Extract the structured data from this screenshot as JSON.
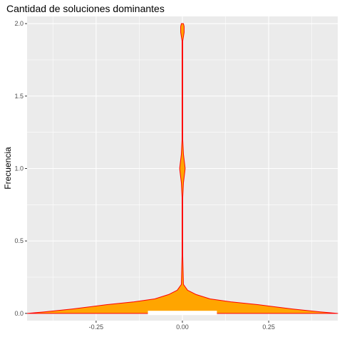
{
  "chart_data": {
    "type": "violin",
    "title": "Cantidad de soluciones dominantes",
    "xlabel": "",
    "ylabel": "Frecuencia",
    "xlim": [
      -0.45,
      0.45
    ],
    "ylim": [
      -0.05,
      2.05
    ],
    "x_ticks": [
      {
        "value": -0.25,
        "label": "-0.25"
      },
      {
        "value": 0.0,
        "label": "0.00"
      },
      {
        "value": 0.25,
        "label": "0.25"
      }
    ],
    "y_ticks": [
      {
        "value": 0.0,
        "label": "0.0"
      },
      {
        "value": 0.5,
        "label": "0.5"
      },
      {
        "value": 1.0,
        "label": "1.0"
      },
      {
        "value": 1.5,
        "label": "1.5"
      },
      {
        "value": 2.0,
        "label": "2.0"
      }
    ],
    "grid": true,
    "legend": "none",
    "fill_color": "#FFA500",
    "outline_color": "#FF0000",
    "panel_color": "#EBEBEB",
    "grid_color": "#FFFFFF",
    "violin": {
      "center_x": 0.0,
      "y_min": 0.0,
      "y_max": 2.0,
      "profile": [
        {
          "y": 0.0,
          "half_width": 0.45
        },
        {
          "y": 0.01,
          "half_width": 0.4
        },
        {
          "y": 0.03,
          "half_width": 0.32
        },
        {
          "y": 0.06,
          "half_width": 0.22
        },
        {
          "y": 0.08,
          "half_width": 0.14
        },
        {
          "y": 0.1,
          "half_width": 0.08
        },
        {
          "y": 0.13,
          "half_width": 0.04
        },
        {
          "y": 0.16,
          "half_width": 0.015
        },
        {
          "y": 0.2,
          "half_width": 0.003
        },
        {
          "y": 0.4,
          "half_width": 0.001
        },
        {
          "y": 0.8,
          "half_width": 0.001
        },
        {
          "y": 0.9,
          "half_width": 0.003
        },
        {
          "y": 0.96,
          "half_width": 0.006
        },
        {
          "y": 1.0,
          "half_width": 0.008
        },
        {
          "y": 1.04,
          "half_width": 0.006
        },
        {
          "y": 1.1,
          "half_width": 0.003
        },
        {
          "y": 1.2,
          "half_width": 0.001
        },
        {
          "y": 1.88,
          "half_width": 0.001
        },
        {
          "y": 1.94,
          "half_width": 0.005
        },
        {
          "y": 1.98,
          "half_width": 0.005
        },
        {
          "y": 2.0,
          "half_width": 0.003
        }
      ],
      "base_gap": {
        "y_from": -0.012,
        "y_to": 0.018,
        "x_from": -0.1,
        "x_to": 0.1
      }
    }
  }
}
